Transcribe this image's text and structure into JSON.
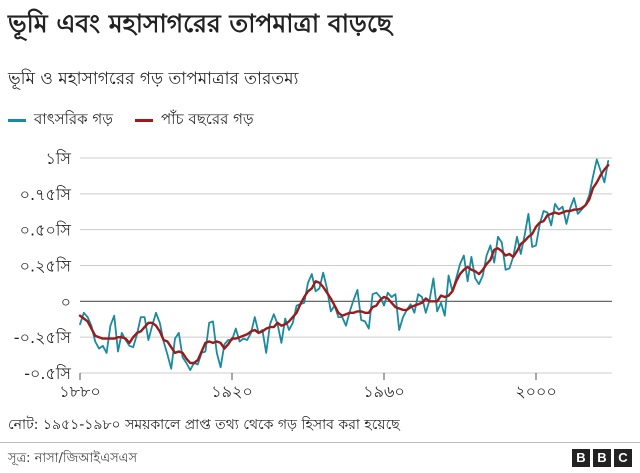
{
  "title": "ভূমি এবং মহাসাগরের তাপমাত্রা বাড়ছে",
  "subtitle": "ভূমি ও মহাসাগরের গড় তাপমাত্রার তারতম্য",
  "legend": {
    "annual_label": "বাৎসরিক গড়",
    "five_year_label": "পাঁচ বছরের গড়"
  },
  "note": "নোট: ১৯৫১-১৯৮০ সময়কালে প্রাপ্ত তথ্য থেকে গড় হিসাব করা হয়েছে",
  "source": "সূত্র: নাসা/জিআইএসএস",
  "brand": [
    "B",
    "B",
    "C"
  ],
  "colors": {
    "annual": "#1a8a9e",
    "five_year": "#9b1b1b",
    "gridline": "#cccccc",
    "zero_line": "#555555"
  },
  "chart_data": {
    "type": "line",
    "title": "ভূমি এবং মহাসাগরের তাপমাত্রা বাড়ছে",
    "subtitle": "ভূমি ও মহাসাগরের গড় তাপমাত্রার তারতম্য",
    "xlabel": "",
    "ylabel": "",
    "xlim": [
      1880,
      2020
    ],
    "ylim": [
      -0.5,
      1.0
    ],
    "x_ticks": [
      1880,
      1920,
      1960,
      2000
    ],
    "x_tick_labels": [
      "১৮৮০",
      "১৯২০",
      "১৯৬০",
      "২০০০"
    ],
    "y_ticks": [
      1.0,
      0.75,
      0.5,
      0.25,
      0,
      -0.25,
      -0.5
    ],
    "y_tick_labels": [
      "১সি",
      "০.৭৫সি",
      "০.৫০সি",
      "০.২৫সি",
      "০",
      "-০.২৫সি",
      "-০.৫সি"
    ],
    "grid": true,
    "legend_position": "top-left",
    "x": [
      1880,
      1881,
      1882,
      1883,
      1884,
      1885,
      1886,
      1887,
      1888,
      1889,
      1890,
      1891,
      1892,
      1893,
      1894,
      1895,
      1896,
      1897,
      1898,
      1899,
      1900,
      1901,
      1902,
      1903,
      1904,
      1905,
      1906,
      1907,
      1908,
      1909,
      1910,
      1911,
      1912,
      1913,
      1914,
      1915,
      1916,
      1917,
      1918,
      1919,
      1920,
      1921,
      1922,
      1923,
      1924,
      1925,
      1926,
      1927,
      1928,
      1929,
      1930,
      1931,
      1932,
      1933,
      1934,
      1935,
      1936,
      1937,
      1938,
      1939,
      1940,
      1941,
      1942,
      1943,
      1944,
      1945,
      1946,
      1947,
      1948,
      1949,
      1950,
      1951,
      1952,
      1953,
      1954,
      1955,
      1956,
      1957,
      1958,
      1959,
      1960,
      1961,
      1962,
      1963,
      1964,
      1965,
      1966,
      1967,
      1968,
      1969,
      1970,
      1971,
      1972,
      1973,
      1974,
      1975,
      1976,
      1977,
      1978,
      1979,
      1980,
      1981,
      1982,
      1983,
      1984,
      1985,
      1986,
      1987,
      1988,
      1989,
      1990,
      1991,
      1992,
      1993,
      1994,
      1995,
      1996,
      1997,
      1998,
      1999,
      2000,
      2001,
      2002,
      2003,
      2004,
      2005,
      2006,
      2007,
      2008,
      2009,
      2010,
      2011,
      2012,
      2013,
      2014,
      2015,
      2016,
      2017,
      2018,
      2019
    ],
    "series": [
      {
        "name": "বাৎসরিক গড়",
        "values": [
          -0.16,
          -0.08,
          -0.11,
          -0.17,
          -0.28,
          -0.33,
          -0.31,
          -0.36,
          -0.17,
          -0.1,
          -0.35,
          -0.22,
          -0.27,
          -0.31,
          -0.32,
          -0.23,
          -0.11,
          -0.11,
          -0.27,
          -0.17,
          -0.08,
          -0.15,
          -0.28,
          -0.37,
          -0.47,
          -0.26,
          -0.22,
          -0.39,
          -0.43,
          -0.48,
          -0.43,
          -0.44,
          -0.36,
          -0.35,
          -0.15,
          -0.14,
          -0.36,
          -0.46,
          -0.3,
          -0.27,
          -0.27,
          -0.19,
          -0.28,
          -0.26,
          -0.27,
          -0.22,
          -0.11,
          -0.22,
          -0.2,
          -0.36,
          -0.16,
          -0.09,
          -0.16,
          -0.29,
          -0.12,
          -0.2,
          -0.15,
          -0.03,
          -0.02,
          -0.01,
          0.13,
          0.19,
          0.07,
          0.09,
          0.2,
          0.09,
          -0.07,
          -0.03,
          -0.11,
          -0.11,
          -0.17,
          -0.07,
          0.01,
          0.08,
          -0.13,
          -0.14,
          -0.19,
          0.05,
          0.06,
          0.03,
          -0.03,
          0.06,
          0.03,
          0.05,
          -0.2,
          -0.11,
          -0.06,
          -0.02,
          -0.08,
          0.05,
          0.03,
          -0.08,
          0.01,
          0.16,
          -0.07,
          -0.01,
          -0.1,
          0.18,
          0.07,
          0.16,
          0.26,
          0.32,
          0.14,
          0.31,
          0.16,
          0.12,
          0.18,
          0.32,
          0.39,
          0.27,
          0.45,
          0.41,
          0.22,
          0.23,
          0.31,
          0.45,
          0.33,
          0.46,
          0.61,
          0.38,
          0.39,
          0.54,
          0.63,
          0.62,
          0.53,
          0.68,
          0.64,
          0.66,
          0.54,
          0.65,
          0.72,
          0.61,
          0.64,
          0.67,
          0.74,
          0.87,
          0.99,
          0.91,
          0.83,
          0.98
        ]
      },
      {
        "name": "পাঁচ বছরের গড়",
        "values": [
          -0.1,
          -0.12,
          -0.14,
          -0.19,
          -0.24,
          -0.25,
          -0.26,
          -0.26,
          -0.26,
          -0.26,
          -0.25,
          -0.25,
          -0.26,
          -0.29,
          -0.25,
          -0.22,
          -0.21,
          -0.18,
          -0.15,
          -0.15,
          -0.17,
          -0.21,
          -0.27,
          -0.28,
          -0.32,
          -0.36,
          -0.35,
          -0.36,
          -0.4,
          -0.43,
          -0.43,
          -0.41,
          -0.35,
          -0.29,
          -0.28,
          -0.29,
          -0.28,
          -0.29,
          -0.33,
          -0.3,
          -0.26,
          -0.26,
          -0.25,
          -0.24,
          -0.23,
          -0.21,
          -0.2,
          -0.22,
          -0.21,
          -0.19,
          -0.18,
          -0.18,
          -0.15,
          -0.17,
          -0.16,
          -0.14,
          -0.11,
          -0.08,
          -0.02,
          0.03,
          0.07,
          0.09,
          0.14,
          0.13,
          0.1,
          0.06,
          0.02,
          -0.03,
          -0.08,
          -0.1,
          -0.09,
          -0.08,
          -0.08,
          -0.07,
          -0.07,
          -0.08,
          -0.08,
          -0.04,
          -0.03,
          0.01,
          0.03,
          0.02,
          -0.01,
          -0.04,
          -0.05,
          -0.06,
          -0.06,
          -0.04,
          -0.03,
          -0.02,
          -0.01,
          0.02,
          0.0,
          0.0,
          0.0,
          0.04,
          0.03,
          0.04,
          0.07,
          0.14,
          0.19,
          0.22,
          0.24,
          0.22,
          0.21,
          0.19,
          0.22,
          0.26,
          0.29,
          0.36,
          0.37,
          0.35,
          0.32,
          0.33,
          0.31,
          0.35,
          0.4,
          0.42,
          0.45,
          0.47,
          0.52,
          0.55,
          0.56,
          0.6,
          0.61,
          0.62,
          0.61,
          0.62,
          0.63,
          0.63,
          0.64,
          0.64,
          0.65,
          0.67,
          0.71,
          0.79,
          0.83,
          0.88,
          0.92,
          0.95
        ]
      }
    ]
  }
}
